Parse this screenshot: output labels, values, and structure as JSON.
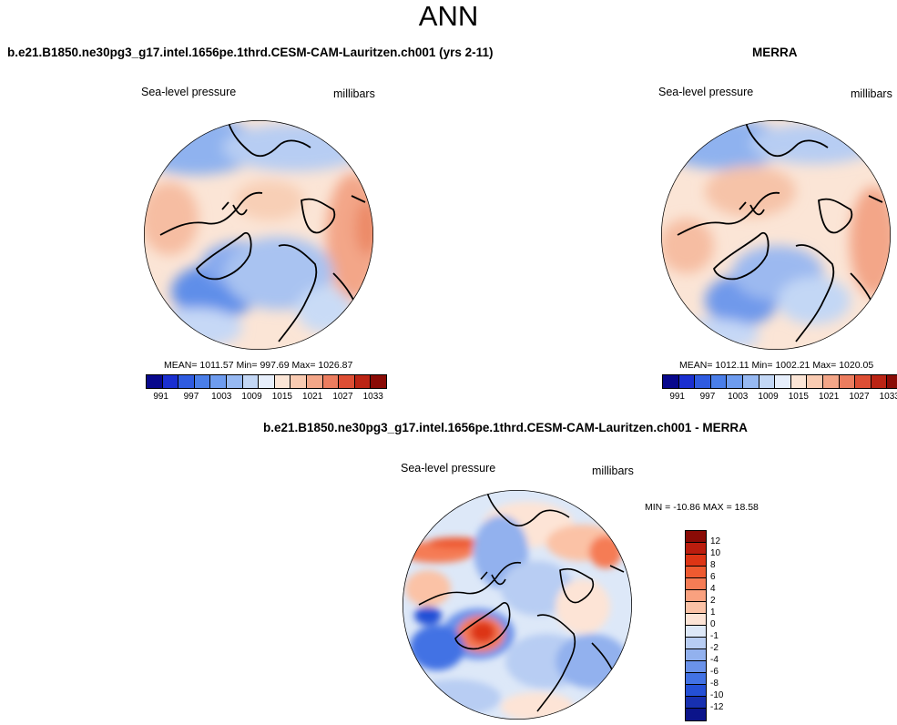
{
  "title": "ANN",
  "panels": {
    "model": {
      "title": "b.e21.B1850.ne30pg3_g17.intel.1656pe.1thrd.CESM-CAM-Lauritzen.ch001 (yrs 2-11)",
      "variable": "Sea-level pressure",
      "units": "millibars",
      "stats": "MEAN= 1011.57  Min= 997.69  Max= 1026.87"
    },
    "obs": {
      "title": "MERRA",
      "variable": "Sea-level pressure",
      "units": "millibars",
      "stats": "MEAN= 1012.11  Min= 1002.21  Max= 1020.05"
    },
    "diff": {
      "title": "b.e21.B1850.ne30pg3_g17.intel.1656pe.1thrd.CESM-CAM-Lauritzen.ch001 - MERRA",
      "variable": "Sea-level pressure",
      "units": "millibars",
      "stats": "MIN = -10.86 MAX =  18.58"
    }
  },
  "abs_colorbar": {
    "colors": [
      "#08088c",
      "#1a2fd0",
      "#2f5be0",
      "#4a7ee8",
      "#6e9cef",
      "#97b9f2",
      "#c3d7f5",
      "#e6eefb",
      "#fbe5d6",
      "#f9cbb2",
      "#f3a688",
      "#ec7d5f",
      "#dd4e34",
      "#bb2414",
      "#8a0b06"
    ],
    "labels": [
      "991",
      "997",
      "1003",
      "1009",
      "1015",
      "1021",
      "1027",
      "1033"
    ]
  },
  "diff_colorbar": {
    "colors": [
      "#8a0b06",
      "#bb1d0e",
      "#dd3515",
      "#ee5a30",
      "#f57c55",
      "#f9a17f",
      "#fbc2a6",
      "#fde4d6",
      "#dde8f8",
      "#b8cdf3",
      "#92b1ee",
      "#6a92ea",
      "#4272e4",
      "#2450d6",
      "#1730b0",
      "#0b148a"
    ],
    "labels": [
      "12",
      "10",
      "8",
      "6",
      "4",
      "2",
      "1",
      "0",
      "-1",
      "-2",
      "-4",
      "-6",
      "-8",
      "-10",
      "-12"
    ]
  }
}
